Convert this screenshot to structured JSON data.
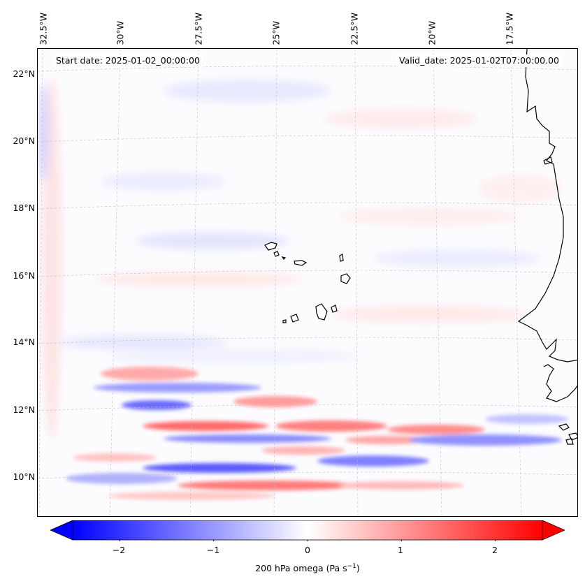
{
  "map": {
    "start_date": "Start date: 2025-01-02_00:00:00",
    "valid_date": "Valid_date: 2025-01-02T07:00:00.00",
    "lon_labels": [
      "32.5°W",
      "30°W",
      "27.5°W",
      "25°W",
      "22.5°W",
      "20°W",
      "17.5°W"
    ],
    "lat_labels": [
      "22°N",
      "20°N",
      "18°N",
      "16°N",
      "14°N",
      "12°N",
      "10°N"
    ],
    "colors": {
      "min": "#0000ff",
      "mid": "#ffffff",
      "max": "#ff0000",
      "coast": "#000000"
    }
  },
  "colorbar": {
    "ticks": [
      "−2",
      "−1",
      "0",
      "1",
      "2"
    ],
    "tick_values": [
      -2,
      -1,
      0,
      1,
      2
    ],
    "range": [
      -2.5,
      2.5
    ],
    "label_main": "200 hPa omega (Pa s",
    "label_sup": "−1",
    "label_end": ")"
  }
}
